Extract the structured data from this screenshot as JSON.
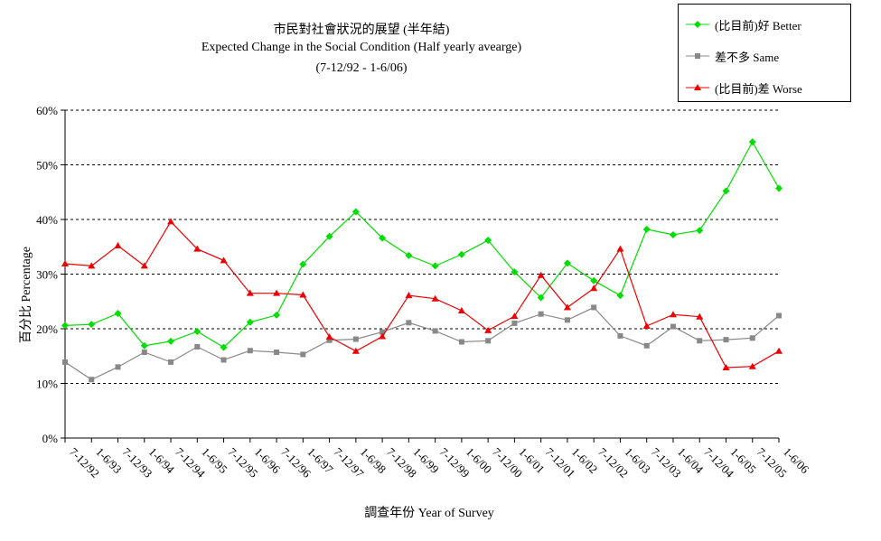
{
  "chart_data": {
    "type": "line",
    "title": "市民對社會狀況的展望 (半年結)",
    "subtitle": "Expected Change in the Social Condition (Half yearly avearge)",
    "period": "(7-12/92 - 1-6/06)",
    "xlabel": "調查年份 Year of Survey",
    "ylabel": "百分比 Percentage",
    "ylim": [
      0,
      60
    ],
    "yticks": [
      "0%",
      "10%",
      "20%",
      "30%",
      "40%",
      "50%",
      "60%"
    ],
    "grid": true,
    "legend_position": "top-right",
    "categories": [
      "7-12/92",
      "1-6/93",
      "7-12/93",
      "1-6/94",
      "7-12/94",
      "1-6/95",
      "7-12/95",
      "1-6/96",
      "7-12/96",
      "1-6/97",
      "7-12/97",
      "1-6/98",
      "7-12/98",
      "1-6/99",
      "7-12/99",
      "1-6/00",
      "7-12/00",
      "1-6/01",
      "7-12/01",
      "1-6/02",
      "7-12/02",
      "1-6/03",
      "7-12/03",
      "1-6/04",
      "7-12/04",
      "1-6/05",
      "7-12/05",
      "1-6/06"
    ],
    "series": [
      {
        "name": "(比目前)好 Better",
        "color": "#00dd00",
        "marker": "diamond",
        "values": [
          20.6,
          20.8,
          22.8,
          16.9,
          17.7,
          19.5,
          16.6,
          21.2,
          22.5,
          31.8,
          36.9,
          41.4,
          36.6,
          33.4,
          31.5,
          33.6,
          36.2,
          30.4,
          25.7,
          32.0,
          28.8,
          26.1,
          38.2,
          37.2,
          38.0,
          45.2,
          54.2,
          45.7
        ]
      },
      {
        "name": "差不多 Same",
        "color": "#888888",
        "marker": "square",
        "values": [
          13.9,
          10.7,
          13.0,
          15.7,
          13.9,
          16.7,
          14.3,
          16.0,
          15.7,
          15.3,
          17.9,
          18.1,
          19.4,
          21.1,
          19.6,
          17.6,
          17.8,
          21.0,
          22.7,
          21.6,
          23.9,
          18.7,
          16.9,
          20.4,
          17.8,
          18.0,
          18.3,
          22.4
        ]
      },
      {
        "name": "(比目前)差 Worse",
        "color": "#ee0000",
        "marker": "triangle",
        "values": [
          31.9,
          31.5,
          35.2,
          31.5,
          39.6,
          34.6,
          32.5,
          26.5,
          26.5,
          26.2,
          18.5,
          15.9,
          18.6,
          26.1,
          25.5,
          23.3,
          19.7,
          22.3,
          29.8,
          23.9,
          27.4,
          34.6,
          20.5,
          22.6,
          22.2,
          12.9,
          13.1,
          15.9
        ]
      }
    ]
  }
}
